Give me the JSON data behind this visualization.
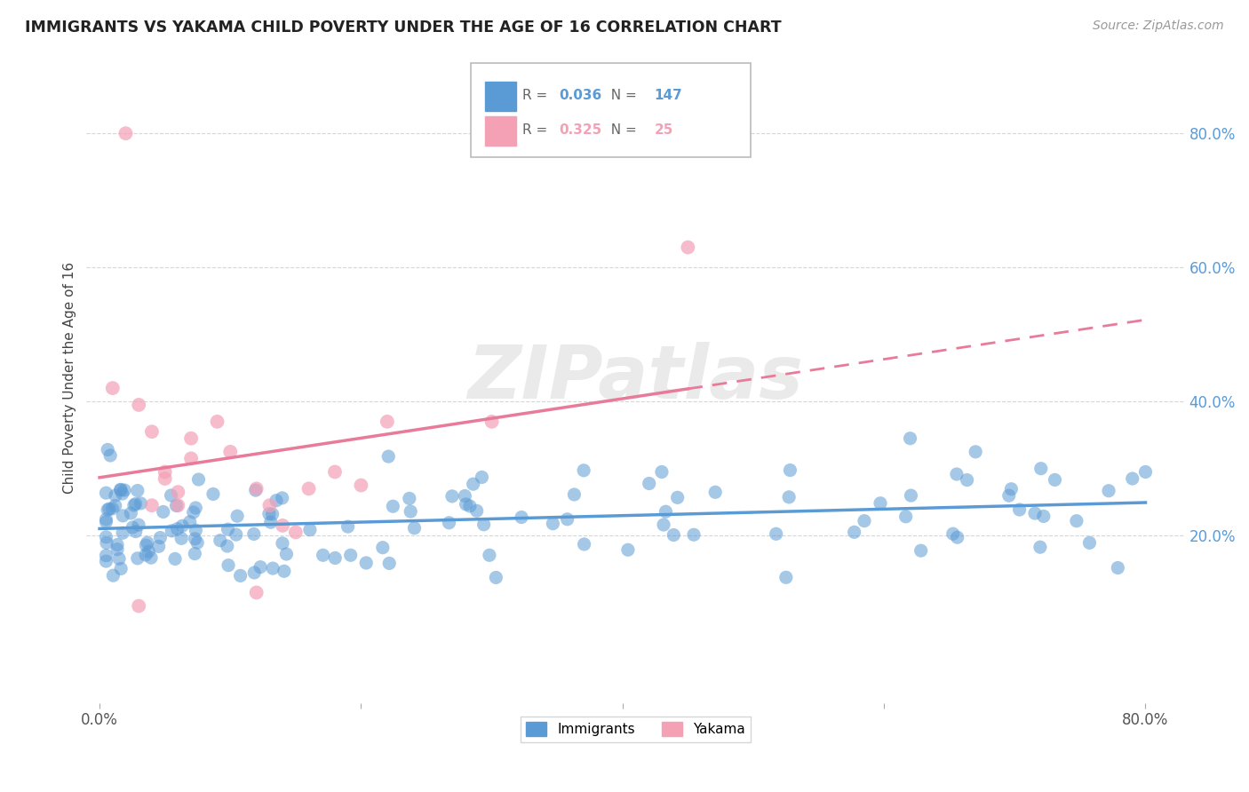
{
  "title": "IMMIGRANTS VS YAKAMA CHILD POVERTY UNDER THE AGE OF 16 CORRELATION CHART",
  "source": "Source: ZipAtlas.com",
  "ylabel": "Child Poverty Under the Age of 16",
  "xlim": [
    -0.01,
    0.83
  ],
  "ylim": [
    -0.05,
    0.92
  ],
  "xtick_values": [
    0.0,
    0.2,
    0.4,
    0.6,
    0.8
  ],
  "xtick_labels": [
    "0.0%",
    "",
    "",
    "",
    "80.0%"
  ],
  "ytick_values": [
    0.2,
    0.4,
    0.6,
    0.8
  ],
  "ytick_labels": [
    "20.0%",
    "40.0%",
    "60.0%",
    "80.0%"
  ],
  "immigrants_color": "#5b9bd5",
  "yakama_color": "#f4a0b5",
  "yakama_line_color": "#e87a9a",
  "immigrants_R": 0.036,
  "immigrants_N": 147,
  "yakama_R": 0.325,
  "yakama_N": 25,
  "watermark": "ZIPatlas",
  "legend_immigrants": "Immigrants",
  "legend_yakama": "Yakama"
}
